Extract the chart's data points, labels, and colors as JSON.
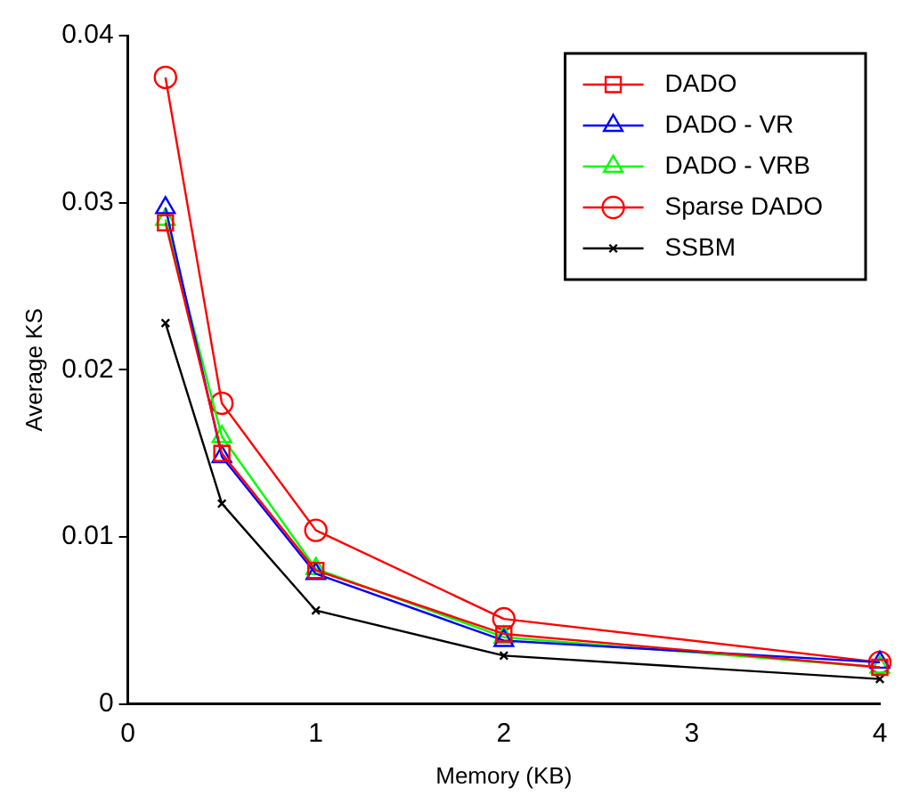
{
  "chart_data": {
    "type": "line",
    "xlabel": "Memory (KB)",
    "ylabel": "Average KS",
    "x": [
      0.2,
      0.5,
      1,
      2,
      4
    ],
    "xlim": [
      0,
      4
    ],
    "xticks": [
      0,
      1,
      2,
      3,
      4
    ],
    "ylim": [
      0,
      0.04
    ],
    "yticks": [
      0,
      0.01,
      0.02,
      0.03,
      0.04
    ],
    "grid": false,
    "legend": "top right",
    "line_style": "solid",
    "series": [
      {
        "name": "DADO",
        "color": "#ff0000",
        "marker": "square",
        "values": [
          0.0288,
          0.015,
          0.008,
          0.0042,
          0.0022
        ]
      },
      {
        "name": "DADO - VR",
        "color": "#0000ff",
        "marker": "triangle",
        "values": [
          0.0297,
          0.0148,
          0.0078,
          0.0038,
          0.0025
        ]
      },
      {
        "name": "DADO - VRB",
        "color": "#00ff00",
        "marker": "triangle",
        "values": [
          0.029,
          0.016,
          0.0081,
          0.004,
          0.0022
        ]
      },
      {
        "name": "Sparse DADO",
        "color": "#ff0000",
        "marker": "circle",
        "values": [
          0.0375,
          0.018,
          0.0104,
          0.0051,
          0.0025
        ]
      },
      {
        "name": "SSBM",
        "color": "#000000",
        "marker": "cross",
        "values": [
          0.0228,
          0.012,
          0.0056,
          0.0029,
          0.0015
        ]
      }
    ]
  }
}
